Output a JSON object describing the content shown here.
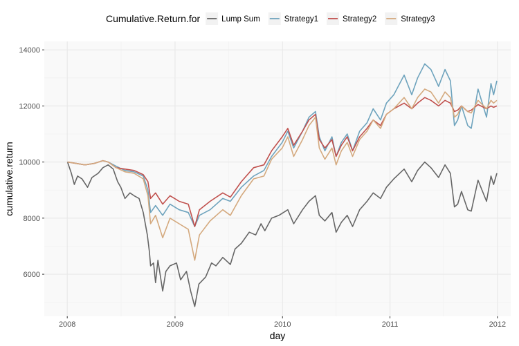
{
  "chart_data": {
    "type": "line",
    "xlabel": "day",
    "ylabel": "cumulative.return",
    "xlim": [
      "2007-10-15",
      "2012-02-15"
    ],
    "ylim": [
      4500,
      14300
    ],
    "x_ticks": [
      "2008",
      "2009",
      "2010",
      "2011",
      "2012"
    ],
    "y_ticks": [
      6000,
      8000,
      10000,
      12000,
      14000
    ],
    "grid": true,
    "legend": {
      "title": "Cumulative.Return.for",
      "position": "top"
    },
    "series": [
      {
        "name": "Lump Sum",
        "color": "#666666",
        "points": [
          [
            "2008-01-02",
            10000
          ],
          [
            "2008-01-15",
            9600
          ],
          [
            "2008-01-25",
            9200
          ],
          [
            "2008-02-05",
            9500
          ],
          [
            "2008-02-20",
            9400
          ],
          [
            "2008-03-10",
            9100
          ],
          [
            "2008-03-25",
            9450
          ],
          [
            "2008-04-15",
            9600
          ],
          [
            "2008-05-01",
            9800
          ],
          [
            "2008-05-19",
            9900
          ],
          [
            "2008-06-05",
            9750
          ],
          [
            "2008-06-20",
            9300
          ],
          [
            "2008-07-01",
            9100
          ],
          [
            "2008-07-15",
            8700
          ],
          [
            "2008-08-01",
            8900
          ],
          [
            "2008-08-15",
            8800
          ],
          [
            "2008-09-01",
            8700
          ],
          [
            "2008-09-15",
            8200
          ],
          [
            "2008-09-29",
            7400
          ],
          [
            "2008-10-06",
            6800
          ],
          [
            "2008-10-10",
            6300
          ],
          [
            "2008-10-20",
            6400
          ],
          [
            "2008-10-27",
            5700
          ],
          [
            "2008-11-04",
            6500
          ],
          [
            "2008-11-20",
            5400
          ],
          [
            "2008-12-01",
            6100
          ],
          [
            "2008-12-15",
            6300
          ],
          [
            "2009-01-06",
            6400
          ],
          [
            "2009-01-20",
            5800
          ],
          [
            "2009-02-09",
            6100
          ],
          [
            "2009-02-23",
            5400
          ],
          [
            "2009-03-09",
            4850
          ],
          [
            "2009-03-23",
            5650
          ],
          [
            "2009-04-15",
            5900
          ],
          [
            "2009-05-05",
            6400
          ],
          [
            "2009-05-20",
            6300
          ],
          [
            "2009-06-12",
            6600
          ],
          [
            "2009-07-08",
            6350
          ],
          [
            "2009-07-24",
            6900
          ],
          [
            "2009-08-14",
            7100
          ],
          [
            "2009-09-10",
            7500
          ],
          [
            "2009-10-02",
            7400
          ],
          [
            "2009-10-20",
            7800
          ],
          [
            "2009-11-02",
            7550
          ],
          [
            "2009-11-25",
            8000
          ],
          [
            "2009-12-20",
            8100
          ],
          [
            "2010-01-19",
            8300
          ],
          [
            "2010-02-08",
            7800
          ],
          [
            "2010-03-10",
            8300
          ],
          [
            "2010-04-01",
            8600
          ],
          [
            "2010-04-23",
            8800
          ],
          [
            "2010-05-06",
            8100
          ],
          [
            "2010-05-25",
            7900
          ],
          [
            "2010-06-18",
            8200
          ],
          [
            "2010-07-02",
            7500
          ],
          [
            "2010-07-20",
            7850
          ],
          [
            "2010-08-09",
            8100
          ],
          [
            "2010-08-27",
            7700
          ],
          [
            "2010-09-20",
            8300
          ],
          [
            "2010-10-15",
            8600
          ],
          [
            "2010-11-05",
            8900
          ],
          [
            "2010-11-30",
            8700
          ],
          [
            "2010-12-20",
            9100
          ],
          [
            "2011-01-14",
            9400
          ],
          [
            "2011-02-18",
            9750
          ],
          [
            "2011-03-16",
            9300
          ],
          [
            "2011-04-05",
            9700
          ],
          [
            "2011-04-29",
            10000
          ],
          [
            "2011-05-20",
            9800
          ],
          [
            "2011-06-15",
            9450
          ],
          [
            "2011-07-07",
            9900
          ],
          [
            "2011-07-25",
            9600
          ],
          [
            "2011-08-08",
            8400
          ],
          [
            "2011-08-19",
            8500
          ],
          [
            "2011-09-01",
            8950
          ],
          [
            "2011-09-22",
            8300
          ],
          [
            "2011-10-04",
            8250
          ],
          [
            "2011-10-27",
            9350
          ],
          [
            "2011-11-25",
            8600
          ],
          [
            "2011-12-10",
            9500
          ],
          [
            "2011-12-19",
            9200
          ],
          [
            "2011-12-30",
            9600
          ]
        ]
      },
      {
        "name": "Strategy1",
        "color": "#6ea3bd",
        "points": [
          [
            "2008-01-02",
            10000
          ],
          [
            "2008-02-01",
            9950
          ],
          [
            "2008-03-01",
            9900
          ],
          [
            "2008-04-01",
            9950
          ],
          [
            "2008-05-01",
            10050
          ],
          [
            "2008-05-19",
            10000
          ],
          [
            "2008-06-15",
            9850
          ],
          [
            "2008-07-15",
            9700
          ],
          [
            "2008-08-15",
            9650
          ],
          [
            "2008-09-15",
            9500
          ],
          [
            "2008-10-01",
            9000
          ],
          [
            "2008-10-10",
            8200
          ],
          [
            "2008-10-27",
            8450
          ],
          [
            "2008-11-20",
            8100
          ],
          [
            "2008-12-15",
            8500
          ],
          [
            "2009-01-15",
            8300
          ],
          [
            "2009-02-15",
            8200
          ],
          [
            "2009-03-09",
            7700
          ],
          [
            "2009-03-25",
            8100
          ],
          [
            "2009-04-30",
            8300
          ],
          [
            "2009-06-12",
            8700
          ],
          [
            "2009-07-08",
            8600
          ],
          [
            "2009-08-14",
            9100
          ],
          [
            "2009-09-25",
            9500
          ],
          [
            "2009-10-30",
            9700
          ],
          [
            "2009-11-25",
            10200
          ],
          [
            "2009-12-31",
            10700
          ],
          [
            "2010-01-19",
            11100
          ],
          [
            "2010-02-08",
            10500
          ],
          [
            "2010-03-10",
            11100
          ],
          [
            "2010-04-01",
            11600
          ],
          [
            "2010-04-23",
            11800
          ],
          [
            "2010-05-06",
            10900
          ],
          [
            "2010-05-25",
            10400
          ],
          [
            "2010-06-18",
            10900
          ],
          [
            "2010-07-02",
            10200
          ],
          [
            "2010-07-20",
            10700
          ],
          [
            "2010-08-09",
            11000
          ],
          [
            "2010-08-27",
            10400
          ],
          [
            "2010-09-20",
            11100
          ],
          [
            "2010-10-15",
            11400
          ],
          [
            "2010-11-05",
            11900
          ],
          [
            "2010-11-30",
            11500
          ],
          [
            "2010-12-20",
            12100
          ],
          [
            "2011-01-14",
            12400
          ],
          [
            "2011-02-18",
            13100
          ],
          [
            "2011-03-16",
            12400
          ],
          [
            "2011-04-05",
            13000
          ],
          [
            "2011-04-29",
            13500
          ],
          [
            "2011-05-20",
            13300
          ],
          [
            "2011-06-15",
            12700
          ],
          [
            "2011-07-07",
            13300
          ],
          [
            "2011-07-25",
            12900
          ],
          [
            "2011-08-08",
            11300
          ],
          [
            "2011-08-19",
            11500
          ],
          [
            "2011-09-01",
            12000
          ],
          [
            "2011-09-22",
            11300
          ],
          [
            "2011-10-04",
            11200
          ],
          [
            "2011-10-27",
            12600
          ],
          [
            "2011-11-25",
            11600
          ],
          [
            "2011-12-10",
            12800
          ],
          [
            "2011-12-19",
            12400
          ],
          [
            "2011-12-30",
            12900
          ]
        ]
      },
      {
        "name": "Strategy2",
        "color": "#c0504d",
        "points": [
          [
            "2008-01-02",
            10000
          ],
          [
            "2008-02-01",
            9950
          ],
          [
            "2008-03-01",
            9900
          ],
          [
            "2008-04-01",
            9950
          ],
          [
            "2008-05-01",
            10050
          ],
          [
            "2008-05-19",
            10000
          ],
          [
            "2008-06-15",
            9800
          ],
          [
            "2008-07-15",
            9750
          ],
          [
            "2008-08-15",
            9700
          ],
          [
            "2008-09-15",
            9550
          ],
          [
            "2008-10-01",
            9300
          ],
          [
            "2008-10-10",
            8700
          ],
          [
            "2008-10-27",
            8900
          ],
          [
            "2008-11-20",
            8500
          ],
          [
            "2008-12-15",
            8800
          ],
          [
            "2009-01-15",
            8600
          ],
          [
            "2009-02-15",
            8500
          ],
          [
            "2009-03-09",
            7700
          ],
          [
            "2009-03-25",
            8300
          ],
          [
            "2009-04-30",
            8600
          ],
          [
            "2009-06-12",
            8900
          ],
          [
            "2009-07-08",
            8750
          ],
          [
            "2009-08-14",
            9300
          ],
          [
            "2009-09-25",
            9800
          ],
          [
            "2009-10-30",
            9900
          ],
          [
            "2009-11-25",
            10400
          ],
          [
            "2009-12-31",
            10900
          ],
          [
            "2010-01-19",
            11200
          ],
          [
            "2010-02-08",
            10600
          ],
          [
            "2010-03-10",
            11100
          ],
          [
            "2010-04-01",
            11500
          ],
          [
            "2010-04-23",
            11700
          ],
          [
            "2010-05-06",
            10800
          ],
          [
            "2010-05-25",
            10500
          ],
          [
            "2010-06-18",
            10800
          ],
          [
            "2010-07-02",
            10200
          ],
          [
            "2010-07-20",
            10600
          ],
          [
            "2010-08-09",
            10900
          ],
          [
            "2010-08-27",
            10400
          ],
          [
            "2010-09-20",
            10900
          ],
          [
            "2010-10-15",
            11200
          ],
          [
            "2010-11-05",
            11500
          ],
          [
            "2010-11-30",
            11300
          ],
          [
            "2010-12-20",
            11700
          ],
          [
            "2011-01-14",
            11900
          ],
          [
            "2011-02-18",
            12100
          ],
          [
            "2011-03-16",
            11900
          ],
          [
            "2011-04-05",
            12100
          ],
          [
            "2011-04-29",
            12300
          ],
          [
            "2011-05-20",
            12200
          ],
          [
            "2011-06-15",
            12000
          ],
          [
            "2011-07-07",
            12200
          ],
          [
            "2011-07-25",
            12100
          ],
          [
            "2011-08-08",
            11800
          ],
          [
            "2011-08-19",
            11850
          ],
          [
            "2011-09-01",
            12000
          ],
          [
            "2011-09-22",
            11800
          ],
          [
            "2011-10-04",
            11850
          ],
          [
            "2011-10-27",
            12050
          ],
          [
            "2011-11-25",
            11900
          ],
          [
            "2011-12-10",
            12000
          ],
          [
            "2011-12-19",
            11950
          ],
          [
            "2011-12-30",
            12000
          ]
        ]
      },
      {
        "name": "Strategy3",
        "color": "#d4a97e",
        "points": [
          [
            "2008-01-02",
            10000
          ],
          [
            "2008-02-01",
            9950
          ],
          [
            "2008-03-01",
            9900
          ],
          [
            "2008-04-01",
            9950
          ],
          [
            "2008-05-01",
            10050
          ],
          [
            "2008-05-19",
            10000
          ],
          [
            "2008-06-15",
            9800
          ],
          [
            "2008-07-15",
            9650
          ],
          [
            "2008-08-15",
            9600
          ],
          [
            "2008-09-15",
            9400
          ],
          [
            "2008-10-01",
            8800
          ],
          [
            "2008-10-10",
            7800
          ],
          [
            "2008-10-27",
            8100
          ],
          [
            "2008-11-20",
            7300
          ],
          [
            "2008-12-15",
            8000
          ],
          [
            "2009-01-15",
            7800
          ],
          [
            "2009-02-15",
            7600
          ],
          [
            "2009-03-09",
            6500
          ],
          [
            "2009-03-25",
            7400
          ],
          [
            "2009-04-30",
            7900
          ],
          [
            "2009-06-12",
            8300
          ],
          [
            "2009-07-08",
            8100
          ],
          [
            "2009-08-14",
            8800
          ],
          [
            "2009-09-25",
            9400
          ],
          [
            "2009-10-30",
            9500
          ],
          [
            "2009-11-25",
            10100
          ],
          [
            "2009-12-31",
            10500
          ],
          [
            "2010-01-19",
            10900
          ],
          [
            "2010-02-08",
            10200
          ],
          [
            "2010-03-10",
            10800
          ],
          [
            "2010-04-01",
            11300
          ],
          [
            "2010-04-23",
            11600
          ],
          [
            "2010-05-06",
            10500
          ],
          [
            "2010-05-25",
            10100
          ],
          [
            "2010-06-18",
            10500
          ],
          [
            "2010-07-02",
            9900
          ],
          [
            "2010-07-20",
            10400
          ],
          [
            "2010-08-09",
            10700
          ],
          [
            "2010-08-27",
            10200
          ],
          [
            "2010-09-20",
            10800
          ],
          [
            "2010-10-15",
            11100
          ],
          [
            "2010-11-05",
            11500
          ],
          [
            "2010-11-30",
            11200
          ],
          [
            "2010-12-20",
            11700
          ],
          [
            "2011-01-14",
            11900
          ],
          [
            "2011-02-18",
            12300
          ],
          [
            "2011-03-16",
            11900
          ],
          [
            "2011-04-05",
            12300
          ],
          [
            "2011-04-29",
            12600
          ],
          [
            "2011-05-20",
            12500
          ],
          [
            "2011-06-15",
            12100
          ],
          [
            "2011-07-07",
            12500
          ],
          [
            "2011-07-25",
            12300
          ],
          [
            "2011-08-08",
            11600
          ],
          [
            "2011-08-19",
            11700
          ],
          [
            "2011-09-01",
            12000
          ],
          [
            "2011-09-22",
            11800
          ],
          [
            "2011-10-04",
            11750
          ],
          [
            "2011-10-27",
            12200
          ],
          [
            "2011-11-25",
            11900
          ],
          [
            "2011-12-10",
            12200
          ],
          [
            "2011-12-19",
            12100
          ],
          [
            "2011-12-30",
            12200
          ]
        ]
      }
    ]
  }
}
